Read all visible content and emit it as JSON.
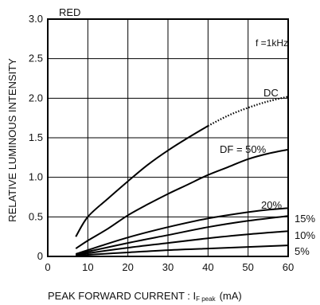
{
  "chart_data": {
    "type": "line",
    "title": "RED",
    "xlabel": "PEAK FORWARD CURRENT : I",
    "xlabel_sub": "F peak",
    "xlabel_unit": "(mA)",
    "ylabel": "RELATIVE LUMINOUS INTENSITY",
    "xlim": [
      0,
      60
    ],
    "ylim": [
      0,
      3.0
    ],
    "x_ticks": [
      0,
      10,
      20,
      30,
      40,
      50,
      60
    ],
    "y_ticks": [
      0,
      0.5,
      1.0,
      1.5,
      2.0,
      2.5,
      3.0
    ],
    "x_tick_labels": [
      "0",
      "10",
      "20",
      "30",
      "40",
      "50",
      "60"
    ],
    "y_tick_labels": [
      "0",
      "0.5",
      "1.0",
      "1.5",
      "2.0",
      "2.5",
      "3.0"
    ],
    "grid": true,
    "annotation": "f =1kHz",
    "series": [
      {
        "name": "DC",
        "x": [
          7,
          10,
          15,
          20,
          25,
          30,
          35,
          40,
          45,
          50,
          55,
          60
        ],
        "values": [
          0.25,
          0.5,
          0.73,
          0.95,
          1.16,
          1.34,
          1.5,
          1.65,
          1.78,
          1.88,
          1.96,
          2.02
        ]
      },
      {
        "name": "DF = 50%",
        "x": [
          7,
          10,
          15,
          20,
          25,
          30,
          35,
          40,
          45,
          50,
          55,
          60
        ],
        "values": [
          0.1,
          0.2,
          0.35,
          0.52,
          0.66,
          0.79,
          0.91,
          1.03,
          1.13,
          1.23,
          1.3,
          1.35
        ]
      },
      {
        "name": "20%",
        "x": [
          7,
          10,
          20,
          30,
          40,
          50,
          55,
          60
        ],
        "values": [
          0.03,
          0.08,
          0.24,
          0.37,
          0.48,
          0.56,
          0.59,
          0.61
        ]
      },
      {
        "name": "15%",
        "x": [
          7,
          10,
          20,
          30,
          40,
          50,
          60
        ],
        "values": [
          0.02,
          0.06,
          0.17,
          0.27,
          0.37,
          0.45,
          0.51
        ]
      },
      {
        "name": "10%",
        "x": [
          7,
          10,
          20,
          30,
          40,
          50,
          60
        ],
        "values": [
          0.01,
          0.04,
          0.11,
          0.17,
          0.23,
          0.28,
          0.32
        ]
      },
      {
        "name": "5%",
        "x": [
          7,
          10,
          20,
          30,
          40,
          50,
          60
        ],
        "values": [
          0.0,
          0.02,
          0.05,
          0.08,
          0.1,
          0.12,
          0.14
        ]
      }
    ]
  }
}
